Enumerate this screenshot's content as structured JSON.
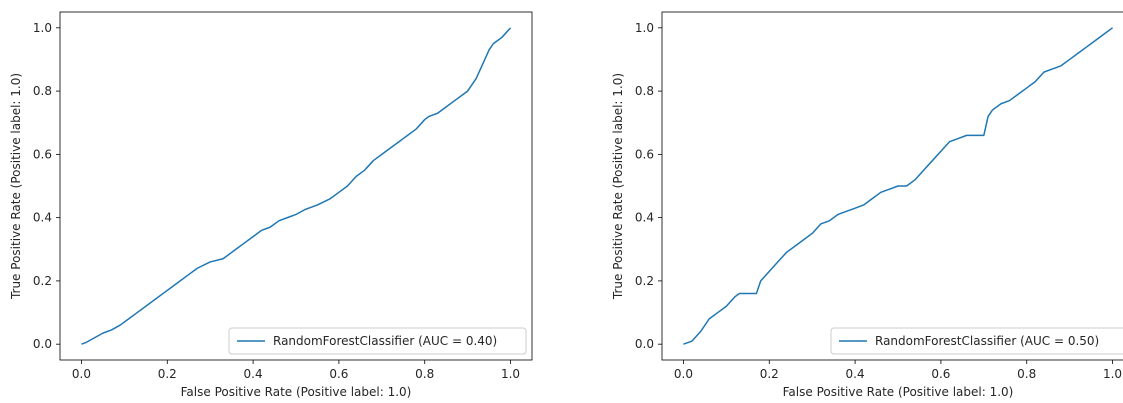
{
  "chart_data": [
    {
      "type": "line",
      "xlabel": "False Positive Rate (Positive label: 1.0)",
      "ylabel": "True Positive Rate (Positive label: 1.0)",
      "xlim": [
        -0.05,
        1.05
      ],
      "ylim": [
        -0.05,
        1.05
      ],
      "xticks": [
        "0.0",
        "0.2",
        "0.4",
        "0.6",
        "0.8",
        "1.0"
      ],
      "yticks": [
        "0.0",
        "0.2",
        "0.4",
        "0.6",
        "0.8",
        "1.0"
      ],
      "grid": false,
      "legend_position": "lower-right",
      "colors": {
        "series": "#1f77b4",
        "axes": "#000000"
      },
      "series": [
        {
          "name": "RandomForestClassifier (AUC = 0.40)",
          "x": [
            0.0,
            0.01,
            0.03,
            0.05,
            0.07,
            0.09,
            0.11,
            0.13,
            0.15,
            0.17,
            0.19,
            0.21,
            0.23,
            0.25,
            0.27,
            0.3,
            0.33,
            0.36,
            0.38,
            0.4,
            0.42,
            0.44,
            0.46,
            0.48,
            0.5,
            0.52,
            0.55,
            0.58,
            0.6,
            0.62,
            0.64,
            0.66,
            0.67,
            0.68,
            0.7,
            0.72,
            0.74,
            0.75,
            0.76,
            0.78,
            0.8,
            0.81,
            0.82,
            0.83,
            0.85,
            0.87,
            0.89,
            0.9,
            0.92,
            0.93,
            0.94,
            0.95,
            0.96,
            0.97,
            0.98,
            0.99,
            1.0
          ],
          "y": [
            0.0,
            0.005,
            0.02,
            0.035,
            0.045,
            0.06,
            0.08,
            0.1,
            0.12,
            0.14,
            0.16,
            0.18,
            0.2,
            0.22,
            0.24,
            0.26,
            0.27,
            0.3,
            0.32,
            0.34,
            0.36,
            0.37,
            0.39,
            0.4,
            0.41,
            0.425,
            0.44,
            0.46,
            0.48,
            0.5,
            0.53,
            0.55,
            0.565,
            0.58,
            0.6,
            0.62,
            0.64,
            0.65,
            0.66,
            0.68,
            0.71,
            0.72,
            0.725,
            0.73,
            0.75,
            0.77,
            0.79,
            0.8,
            0.84,
            0.87,
            0.9,
            0.93,
            0.95,
            0.96,
            0.97,
            0.985,
            1.0
          ]
        }
      ]
    },
    {
      "type": "line",
      "xlabel": "False Positive Rate (Positive label: 1.0)",
      "ylabel": "True Positive Rate (Positive label: 1.0)",
      "xlim": [
        -0.05,
        1.05
      ],
      "ylim": [
        -0.05,
        1.05
      ],
      "xticks": [
        "0.0",
        "0.2",
        "0.4",
        "0.6",
        "0.8",
        "1.0"
      ],
      "yticks": [
        "0.0",
        "0.2",
        "0.4",
        "0.6",
        "0.8",
        "1.0"
      ],
      "grid": false,
      "legend_position": "lower-right",
      "colors": {
        "series": "#1f77b4",
        "axes": "#000000"
      },
      "series": [
        {
          "name": "RandomForestClassifier (AUC = 0.50)",
          "x": [
            0.0,
            0.02,
            0.04,
            0.06,
            0.08,
            0.1,
            0.12,
            0.13,
            0.17,
            0.18,
            0.2,
            0.22,
            0.24,
            0.26,
            0.28,
            0.3,
            0.32,
            0.34,
            0.36,
            0.38,
            0.4,
            0.42,
            0.44,
            0.46,
            0.48,
            0.5,
            0.52,
            0.54,
            0.56,
            0.58,
            0.6,
            0.62,
            0.64,
            0.66,
            0.68,
            0.7,
            0.71,
            0.72,
            0.74,
            0.76,
            0.78,
            0.8,
            0.82,
            0.84,
            0.86,
            0.88,
            0.9,
            0.92,
            0.94,
            0.96,
            0.98,
            1.0
          ],
          "y": [
            0.0,
            0.01,
            0.04,
            0.08,
            0.1,
            0.12,
            0.15,
            0.16,
            0.16,
            0.2,
            0.23,
            0.26,
            0.29,
            0.31,
            0.33,
            0.35,
            0.38,
            0.39,
            0.41,
            0.42,
            0.43,
            0.44,
            0.46,
            0.48,
            0.49,
            0.5,
            0.5,
            0.52,
            0.55,
            0.58,
            0.61,
            0.64,
            0.65,
            0.66,
            0.66,
            0.66,
            0.72,
            0.74,
            0.76,
            0.77,
            0.79,
            0.81,
            0.83,
            0.86,
            0.87,
            0.88,
            0.9,
            0.92,
            0.94,
            0.96,
            0.98,
            1.0
          ]
        }
      ]
    }
  ]
}
